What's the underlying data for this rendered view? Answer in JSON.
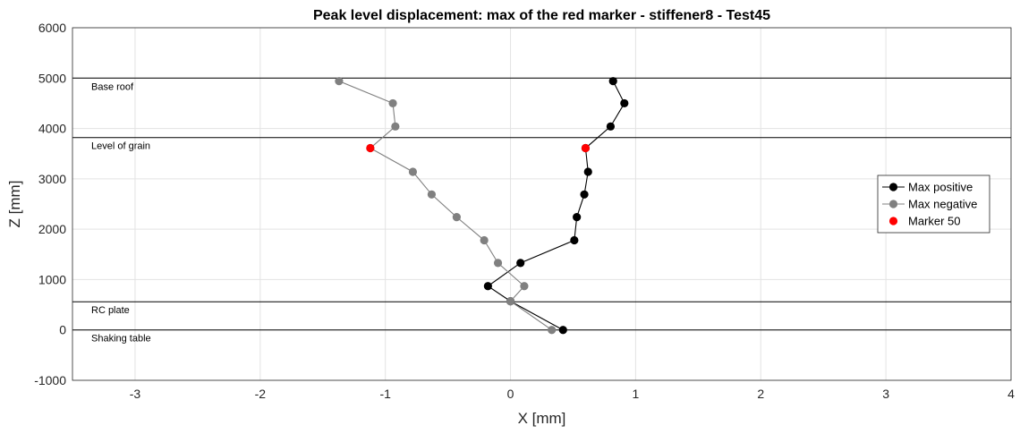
{
  "chart_data": {
    "type": "line",
    "title": "Peak level displacement: max of the red marker - stiffener8 - Test45",
    "xlabel": "X [mm]",
    "ylabel": "Z [mm]",
    "xlim": [
      -3.5,
      4
    ],
    "ylim": [
      -1000,
      6000
    ],
    "xticks": [
      "-3",
      "-2",
      "-1",
      "0",
      "1",
      "2",
      "3",
      "4"
    ],
    "xtick_values": [
      -3,
      -2,
      -1,
      0,
      1,
      2,
      3,
      4
    ],
    "yticks": [
      "-1000",
      "0",
      "1000",
      "2000",
      "3000",
      "4000",
      "5000",
      "6000"
    ],
    "ytick_values": [
      -1000,
      0,
      1000,
      2000,
      3000,
      4000,
      5000,
      6000
    ],
    "grid": true,
    "legend_position": "right",
    "levels": [
      {
        "z": 5000,
        "label": "Base roof"
      },
      {
        "z": 3820,
        "label": "Level of grain"
      },
      {
        "z": 560,
        "label": "RC plate"
      },
      {
        "z": 0,
        "label": "Shaking table"
      }
    ],
    "series": [
      {
        "name": "Max positive",
        "color": "#000000",
        "points": [
          {
            "x": 0.42,
            "z": 0
          },
          {
            "x": 0.0,
            "z": 570
          },
          {
            "x": -0.18,
            "z": 870
          },
          {
            "x": 0.08,
            "z": 1330
          },
          {
            "x": 0.51,
            "z": 1780
          },
          {
            "x": 0.53,
            "z": 2240
          },
          {
            "x": 0.59,
            "z": 2690
          },
          {
            "x": 0.62,
            "z": 3140
          },
          {
            "x": 0.6,
            "z": 3610
          },
          {
            "x": 0.8,
            "z": 4040
          },
          {
            "x": 0.91,
            "z": 4500
          },
          {
            "x": 0.82,
            "z": 4940
          }
        ]
      },
      {
        "name": "Max negative",
        "color": "#808080",
        "points": [
          {
            "x": 0.33,
            "z": 0
          },
          {
            "x": 0.0,
            "z": 570
          },
          {
            "x": 0.11,
            "z": 870
          },
          {
            "x": -0.1,
            "z": 1330
          },
          {
            "x": -0.21,
            "z": 1780
          },
          {
            "x": -0.43,
            "z": 2240
          },
          {
            "x": -0.63,
            "z": 2690
          },
          {
            "x": -0.78,
            "z": 3140
          },
          {
            "x": -1.12,
            "z": 3610
          },
          {
            "x": -0.92,
            "z": 4040
          },
          {
            "x": -0.94,
            "z": 4500
          },
          {
            "x": -1.37,
            "z": 4940
          }
        ]
      },
      {
        "name": "Marker 50",
        "color": "#ff0000",
        "points": [
          {
            "x": 0.6,
            "z": 3610
          },
          {
            "x": -1.12,
            "z": 3610
          }
        ]
      }
    ]
  }
}
